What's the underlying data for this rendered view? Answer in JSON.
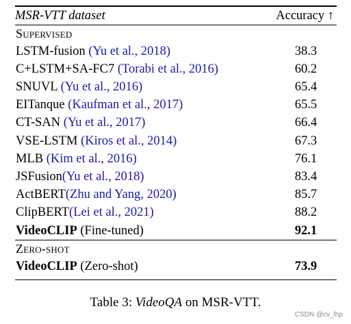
{
  "table": {
    "header": {
      "dataset_title": "MSR-VTT dataset",
      "metric": "Accuracy ↑"
    },
    "sections": [
      {
        "label": "Supervised",
        "rows": [
          {
            "method": "LSTM-fusion",
            "cite": "(Yu et al., 2018)",
            "acc": "38.3"
          },
          {
            "method": "C+LSTM+SA-FC7",
            "cite": "(Torabi et al., 2016)",
            "acc": "60.2"
          },
          {
            "method": "SNUVL",
            "cite": "(Yu et al., 2016)",
            "acc": "65.4"
          },
          {
            "method": "EITanque",
            "cite": "(Kaufman et al., 2017)",
            "acc": "65.5"
          },
          {
            "method": "CT-SAN",
            "cite": "(Yu et al., 2017)",
            "acc": "66.4"
          },
          {
            "method": "VSE-LSTM",
            "cite": "(Kiros et al., 2014)",
            "acc": "67.3"
          },
          {
            "method": "MLB",
            "cite": "(Kim et al., 2016)",
            "acc": "76.1"
          },
          {
            "method": "JSFusion",
            "cite": "(Yu et al., 2018)",
            "acc": "83.4"
          },
          {
            "method": "ActBERT",
            "cite": "(Zhu and Yang, 2020)",
            "acc": "85.7"
          },
          {
            "method": "ClipBERT",
            "cite": "(Lei et al., 2021)",
            "acc": "88.2"
          },
          {
            "method": "VideoCLIP",
            "suffix": "(Fine-tuned)",
            "acc": "92.1",
            "bold": true
          }
        ]
      },
      {
        "label": "Zero-shot",
        "rows": [
          {
            "method": "VideoCLIP",
            "suffix": "(Zero-shot)",
            "acc": "73.9",
            "bold": true
          }
        ]
      }
    ]
  },
  "caption": {
    "prefix": "Table 3: ",
    "emphasis": "VideoQA",
    "suffix": " on MSR-VTT."
  },
  "watermark": "CSDN @cv_lhp",
  "colors": {
    "citation": "#1a1aa8",
    "text": "#000000",
    "watermark": "#8a8a8a"
  }
}
